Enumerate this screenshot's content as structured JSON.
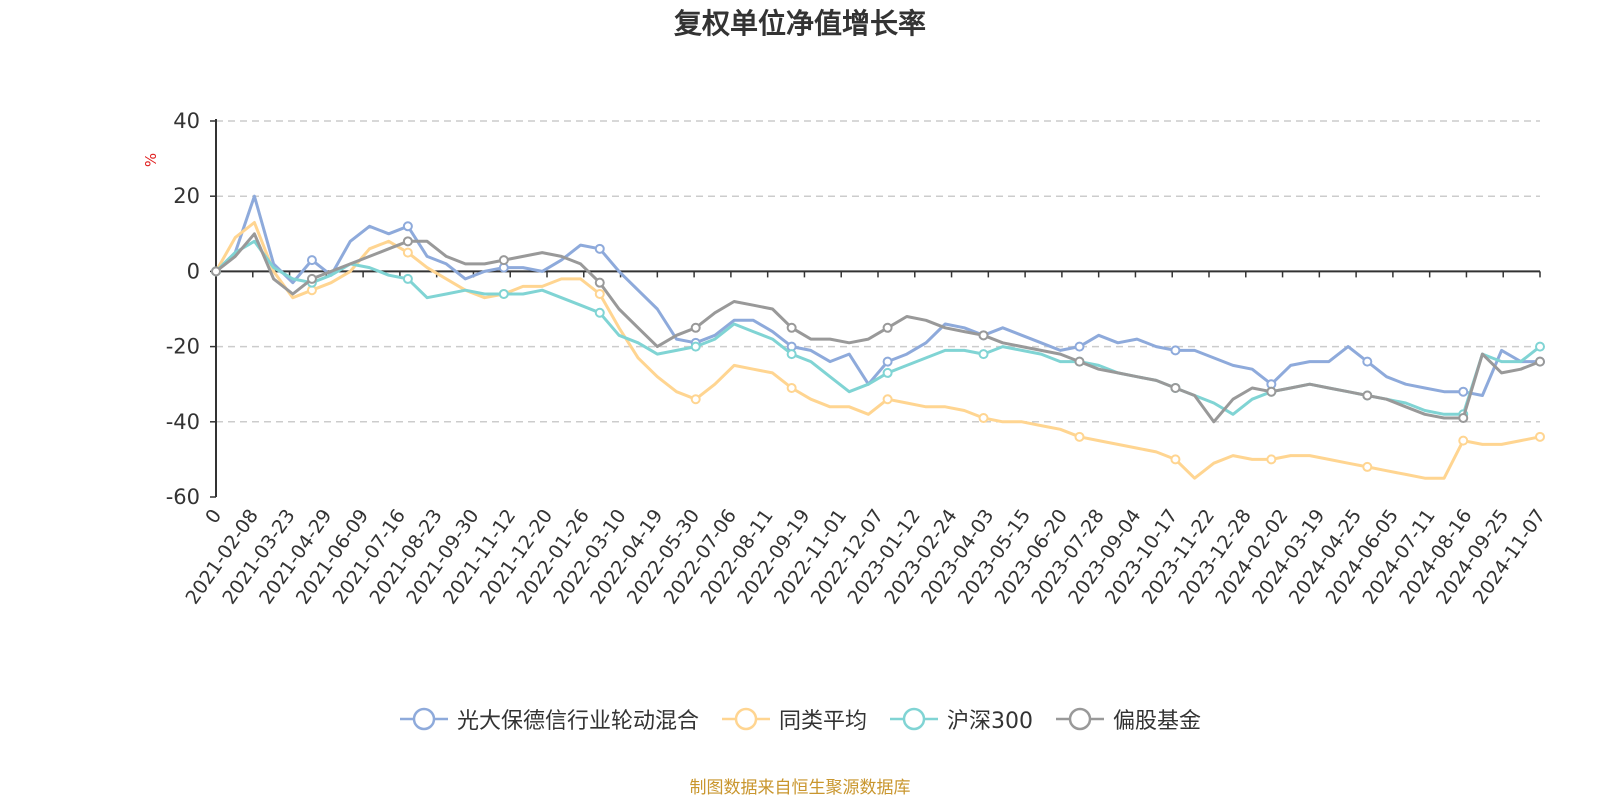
{
  "title": "复权单位净值增长率",
  "source": "制图数据来自恒生聚源数据库",
  "chart_data": {
    "type": "line",
    "ylabel": "%",
    "ylim": [
      -60,
      40
    ],
    "yticks": [
      40,
      20,
      0,
      -20,
      -40,
      -60
    ],
    "grid": true,
    "legend_position": "bottom",
    "x_tick_labels": [
      "0",
      "2021-02-08",
      "2021-03-23",
      "2021-04-29",
      "2021-06-09",
      "2021-07-16",
      "2021-08-23",
      "2021-09-30",
      "2021-11-12",
      "2021-12-20",
      "2022-01-26",
      "2022-03-10",
      "2022-04-19",
      "2022-05-30",
      "2022-07-06",
      "2022-08-11",
      "2022-09-19",
      "2022-11-01",
      "2022-12-07",
      "2023-01-12",
      "2023-02-24",
      "2023-04-03",
      "2023-05-15",
      "2023-06-20",
      "2023-07-28",
      "2023-09-04",
      "2023-10-17",
      "2023-11-22",
      "2023-12-28",
      "2024-02-02",
      "2024-03-19",
      "2024-04-25",
      "2024-06-05",
      "2024-07-11",
      "2024-08-16",
      "2024-09-25",
      "2024-11-07"
    ],
    "series": [
      {
        "name": "光大保德信行业轮动混合",
        "color": "#8eaadb",
        "values": [
          0,
          5,
          20,
          2,
          -3,
          3,
          -1,
          8,
          12,
          10,
          12,
          4,
          2,
          -2,
          0,
          1,
          1,
          0,
          3,
          7,
          6,
          0,
          -5,
          -10,
          -18,
          -19,
          -17,
          -13,
          -13,
          -16,
          -20,
          -21,
          -24,
          -22,
          -30,
          -24,
          -22,
          -19,
          -14,
          -15,
          -17,
          -15,
          -17,
          -19,
          -21,
          -20,
          -17,
          -19,
          -18,
          -20,
          -21,
          -21,
          -23,
          -25,
          -26,
          -30,
          -25,
          -24,
          -24,
          -20,
          -24,
          -28,
          -30,
          -31,
          -32,
          -32,
          -33,
          -21,
          -24,
          -24
        ]
      },
      {
        "name": "同类平均",
        "color": "#ffd591",
        "values": [
          0,
          9,
          13,
          0,
          -7,
          -5,
          -3,
          0,
          6,
          8,
          5,
          1,
          -2,
          -5,
          -7,
          -6,
          -4,
          -4,
          -2,
          -2,
          -6,
          -15,
          -23,
          -28,
          -32,
          -34,
          -30,
          -25,
          -26,
          -27,
          -31,
          -34,
          -36,
          -36,
          -38,
          -34,
          -35,
          -36,
          -36,
          -37,
          -39,
          -40,
          -40,
          -41,
          -42,
          -44,
          -45,
          -46,
          -47,
          -48,
          -50,
          -55,
          -51,
          -49,
          -50,
          -50,
          -49,
          -49,
          -50,
          -51,
          -52,
          -53,
          -54,
          -55,
          -55,
          -45,
          -46,
          -46,
          -45,
          -44
        ]
      },
      {
        "name": "沪深300",
        "color": "#80d4d4",
        "values": [
          0,
          5,
          8,
          1,
          -2,
          -3,
          -1,
          2,
          1,
          -1,
          -2,
          -7,
          -6,
          -5,
          -6,
          -6,
          -6,
          -5,
          -7,
          -9,
          -11,
          -17,
          -19,
          -22,
          -21,
          -20,
          -18,
          -14,
          -16,
          -18,
          -22,
          -24,
          -28,
          -32,
          -30,
          -27,
          -25,
          -23,
          -21,
          -21,
          -22,
          -20,
          -21,
          -22,
          -24,
          -24,
          -25,
          -27,
          -28,
          -29,
          -31,
          -33,
          -35,
          -38,
          -34,
          -32,
          -31,
          -30,
          -31,
          -32,
          -33,
          -34,
          -35,
          -37,
          -38,
          -38,
          -22,
          -24,
          -24,
          -20
        ]
      },
      {
        "name": "偏股基金",
        "color": "#999999",
        "values": [
          0,
          4,
          10,
          -2,
          -6,
          -2,
          0,
          2,
          4,
          6,
          8,
          8,
          4,
          2,
          2,
          3,
          4,
          5,
          4,
          2,
          -3,
          -10,
          -15,
          -20,
          -17,
          -15,
          -11,
          -8,
          -9,
          -10,
          -15,
          -18,
          -18,
          -19,
          -18,
          -15,
          -12,
          -13,
          -15,
          -16,
          -17,
          -19,
          -20,
          -21,
          -22,
          -24,
          -26,
          -27,
          -28,
          -29,
          -31,
          -33,
          -40,
          -34,
          -31,
          -32,
          -31,
          -30,
          -31,
          -32,
          -33,
          -34,
          -36,
          -38,
          -39,
          -39,
          -22,
          -27,
          -26,
          -24
        ]
      }
    ]
  }
}
